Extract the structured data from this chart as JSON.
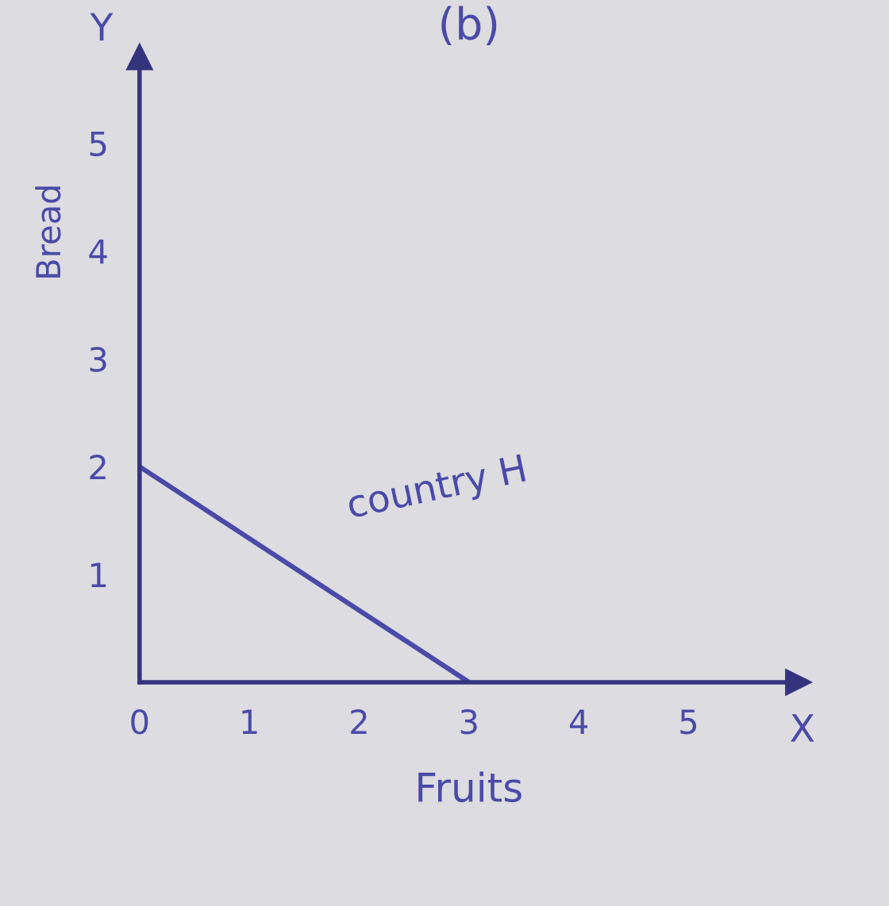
{
  "chart_data": {
    "type": "line",
    "title": "(b)",
    "xlabel": "Fruits",
    "ylabel": "Bread",
    "x": [
      0,
      3
    ],
    "series": [
      {
        "color": "#4a4aa8",
        "values": [
          2,
          0
        ]
      }
    ],
    "xlim": [
      0,
      6
    ],
    "ylim": [
      0,
      5.8
    ],
    "xticks": [
      0,
      1,
      2,
      3,
      4,
      5
    ],
    "yticks": [
      1,
      2,
      3,
      4,
      5
    ],
    "grid": false,
    "line_style": "solid",
    "annotations": [
      "Y",
      "X",
      "country H"
    ]
  }
}
